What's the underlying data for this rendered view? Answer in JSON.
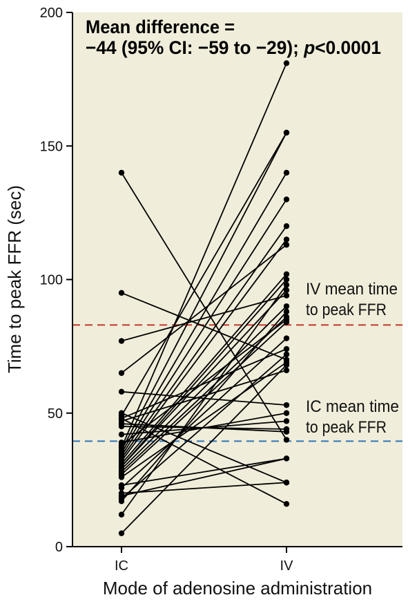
{
  "chart_data": {
    "type": "line",
    "x_categories": [
      "IC",
      "IV"
    ],
    "xlabel": "Mode of adenosine administration",
    "ylabel": "Time to peak FFR (sec)",
    "ylim": [
      0,
      200
    ],
    "yticks": [
      0,
      50,
      100,
      150,
      200
    ],
    "grid": false,
    "background_color": "#f0edda",
    "annotation": {
      "line1": "Mean difference =",
      "line2_prefix": "−44 (95% CI: −59 to −29); ",
      "line2_p": "p",
      "line2_suffix": "<0.0001"
    },
    "reference_lines": [
      {
        "name_line1": "IV mean time",
        "name_line2": "to peak FFR",
        "y": 83,
        "color": "#c0392b"
      },
      {
        "name_line1": "IC mean time",
        "name_line2": "to peak FFR",
        "y": 39.5,
        "color": "#2e75b6"
      }
    ],
    "pairs": [
      [
        140,
        40
      ],
      [
        95,
        70
      ],
      [
        77,
        94
      ],
      [
        65,
        113
      ],
      [
        58,
        53
      ],
      [
        50,
        24
      ],
      [
        49,
        155
      ],
      [
        48,
        74
      ],
      [
        47,
        66
      ],
      [
        46,
        43
      ],
      [
        45,
        44
      ],
      [
        37,
        181
      ],
      [
        36,
        155
      ],
      [
        35,
        140
      ],
      [
        34,
        130
      ],
      [
        33,
        120
      ],
      [
        32,
        115
      ],
      [
        31,
        102
      ],
      [
        30,
        100
      ],
      [
        30,
        96
      ],
      [
        29,
        90
      ],
      [
        28,
        86
      ],
      [
        27,
        84
      ],
      [
        26,
        69
      ],
      [
        23,
        33
      ],
      [
        22,
        78
      ],
      [
        20,
        24
      ],
      [
        19,
        33
      ],
      [
        18,
        72
      ],
      [
        17,
        88
      ],
      [
        12,
        98
      ],
      [
        5,
        68
      ],
      [
        48,
        16
      ],
      [
        42,
        47
      ],
      [
        39,
        50
      ],
      [
        38,
        85
      ]
    ]
  }
}
